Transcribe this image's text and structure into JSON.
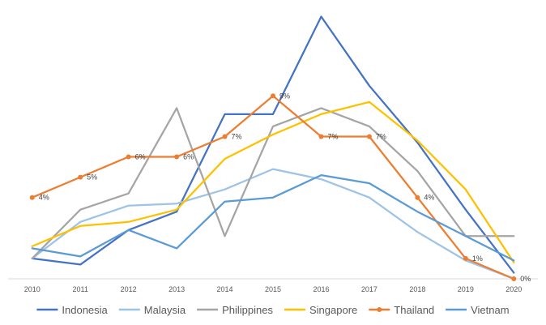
{
  "chart_data": {
    "type": "line",
    "title": "",
    "xlabel": "",
    "ylabel": "",
    "x": [
      "2010",
      "2011",
      "2012",
      "2013",
      "2014",
      "2015",
      "2016",
      "2017",
      "2018",
      "2019",
      "2020"
    ],
    "ylim": [
      0,
      13
    ],
    "grid": false,
    "legend": "bottom",
    "series": [
      {
        "name": "Indonesia",
        "color": "#4472C4",
        "marker": false,
        "values": [
          1.0,
          0.7,
          2.4,
          3.3,
          8.1,
          8.1,
          12.9,
          9.5,
          6.7,
          3.4,
          0.3
        ]
      },
      {
        "name": "Malaysia",
        "color": "#9DC3E6",
        "marker": false,
        "values": [
          1.0,
          2.8,
          3.6,
          3.7,
          4.4,
          5.4,
          4.9,
          4.0,
          2.3,
          0.9,
          0.0
        ]
      },
      {
        "name": "Philippines",
        "color": "#A5A5A5",
        "marker": false,
        "values": [
          1.0,
          3.4,
          4.2,
          8.4,
          2.1,
          7.5,
          8.4,
          7.5,
          5.3,
          2.1,
          2.1
        ]
      },
      {
        "name": "Singapore",
        "color": "#FFC000",
        "marker": false,
        "values": [
          1.6,
          2.6,
          2.8,
          3.4,
          5.9,
          7.1,
          8.1,
          8.7,
          6.8,
          4.4,
          0.8
        ]
      },
      {
        "name": "Thailand",
        "color": "#ED7D31",
        "marker": true,
        "values": [
          4,
          5,
          6,
          6,
          7,
          9,
          7,
          7,
          4,
          1,
          0
        ],
        "labels": [
          "4%",
          "5%",
          "6%",
          "6%",
          "7%",
          "9%",
          "7%",
          "7%",
          "4%",
          "1%",
          "0%"
        ]
      },
      {
        "name": "Vietnam",
        "color": "#5B9BD5",
        "marker": false,
        "values": [
          1.5,
          1.1,
          2.4,
          1.5,
          3.8,
          4.0,
          5.1,
          4.7,
          3.3,
          2.1,
          0.9
        ]
      }
    ]
  }
}
